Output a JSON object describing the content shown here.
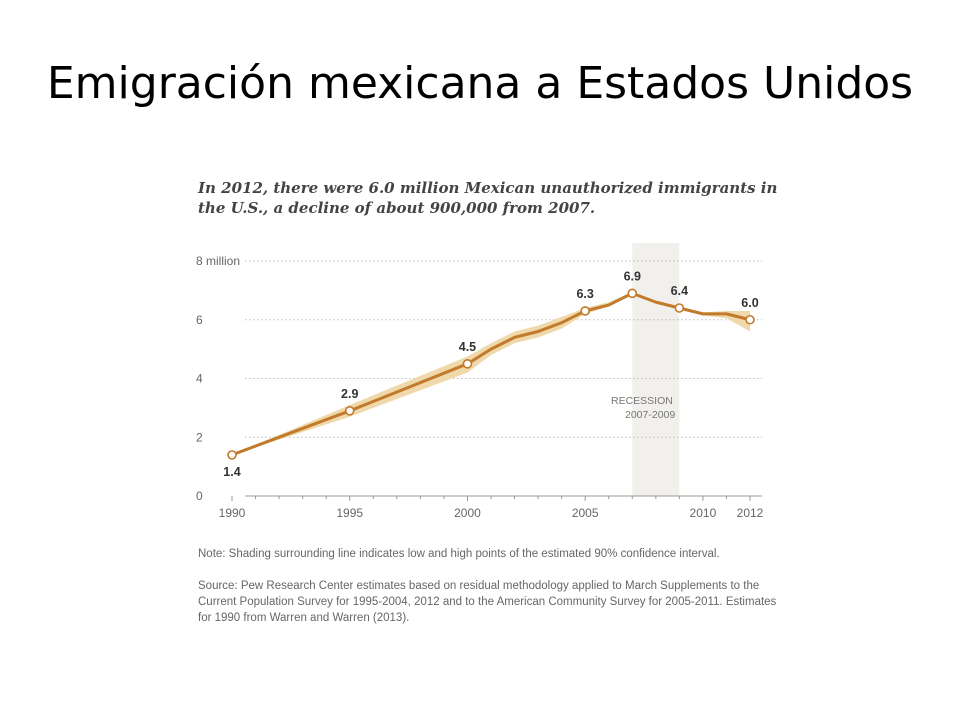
{
  "slide": {
    "title": "Emigración mexicana a Estados Unidos"
  },
  "chart_data": {
    "type": "line",
    "title": "In 2012, there were 6.0 million Mexican unauthorized immigrants in the U.S., a decline of about 900,000 from 2007.",
    "xlabel": "",
    "ylabel": "",
    "xlim": [
      1990,
      2012
    ],
    "ylim": [
      0,
      8
    ],
    "x_ticks": [
      1990,
      1995,
      2000,
      2005,
      2010,
      2012
    ],
    "x_tick_labels": [
      "1990",
      "1995",
      "2000",
      "2005",
      "2010",
      "2012"
    ],
    "y_ticks": [
      0,
      2,
      4,
      6,
      8
    ],
    "y_tick_labels": [
      "0",
      "2",
      "4",
      "6",
      "8 million"
    ],
    "grid": "horizontal dotted",
    "series": [
      {
        "name": "",
        "color": "#c27a2c",
        "band_color": "#efd9aa",
        "x": [
          1990,
          1995,
          2000,
          2001,
          2002,
          2003,
          2004,
          2005,
          2006,
          2007,
          2008,
          2009,
          2010,
          2011,
          2012
        ],
        "values": [
          1.4,
          2.9,
          4.5,
          5.0,
          5.4,
          5.6,
          5.9,
          6.3,
          6.5,
          6.9,
          6.6,
          6.4,
          6.2,
          6.2,
          6.0
        ],
        "low": [
          1.4,
          2.7,
          4.2,
          4.8,
          5.2,
          5.4,
          5.7,
          6.2,
          6.45,
          6.85,
          6.55,
          6.35,
          6.15,
          6.05,
          5.6
        ],
        "high": [
          1.4,
          3.1,
          4.75,
          5.2,
          5.6,
          5.8,
          6.1,
          6.4,
          6.6,
          6.95,
          6.65,
          6.45,
          6.25,
          6.3,
          6.3
        ]
      }
    ],
    "labeled_points": [
      {
        "x": 1990,
        "y": 1.4,
        "label": "1.4",
        "position": "below"
      },
      {
        "x": 1995,
        "y": 2.9,
        "label": "2.9",
        "position": "above"
      },
      {
        "x": 2000,
        "y": 4.5,
        "label": "4.5",
        "position": "above"
      },
      {
        "x": 2005,
        "y": 6.3,
        "label": "6.3",
        "position": "above"
      },
      {
        "x": 2007,
        "y": 6.9,
        "label": "6.9",
        "position": "above"
      },
      {
        "x": 2009,
        "y": 6.4,
        "label": "6.4",
        "position": "above"
      },
      {
        "x": 2012,
        "y": 6.0,
        "label": "6.0",
        "position": "above"
      }
    ],
    "recession": {
      "start": 2007,
      "end": 2009,
      "label_line1": "RECESSION",
      "label_line2": "2007-2009",
      "color": "#f2f0ec"
    },
    "note": "Note: Shading surrounding line indicates low and high points of the estimated 90% confidence interval.",
    "source": "Source: Pew Research Center estimates based on residual methodology applied to March Supplements to the Current Population Survey for 1995-2004, 2012 and to the American Community Survey for 2005-2011. Estimates for 1990 from Warren and Warren (2013)."
  }
}
